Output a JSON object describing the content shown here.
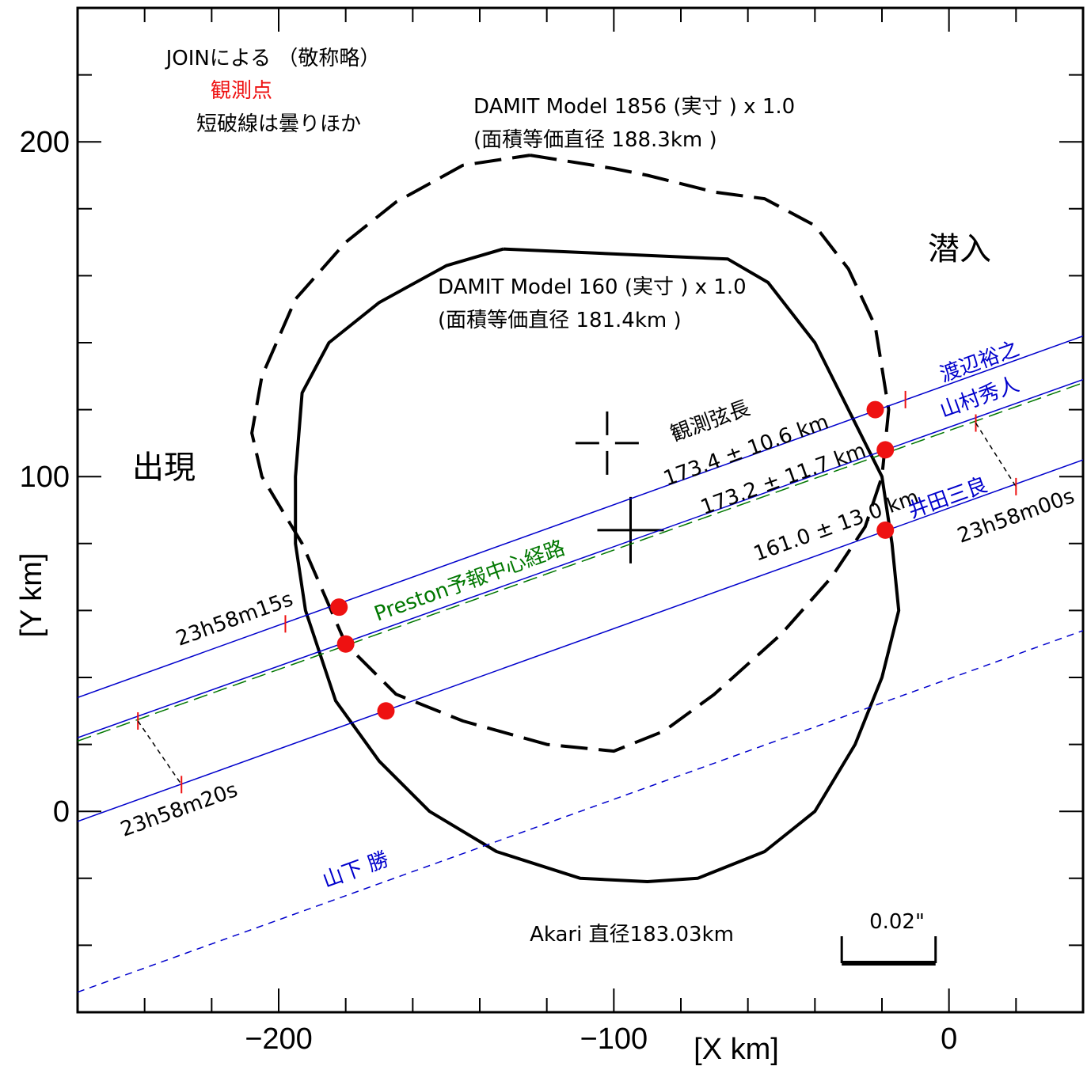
{
  "chart_data": {
    "type": "scatter",
    "xlabel": "[X  km]",
    "ylabel": "[Y  km]",
    "xlim": [
      -260,
      40
    ],
    "ylim": [
      -60,
      240
    ],
    "x_ticks": [
      -200,
      -100,
      0
    ],
    "x_tick_labels": [
      "−200",
      "−100",
      "0"
    ],
    "y_ticks": [
      0,
      100,
      200
    ],
    "y_tick_labels": [
      "0",
      "100",
      "200"
    ],
    "minor_tick_step": 20,
    "grid": false,
    "colors": {
      "observer": "#0000cc",
      "preston": "#007700",
      "event": "#ee1111",
      "tick": "#ee1111",
      "profile": "#000000"
    },
    "observers": [
      {
        "name": "渡辺裕之",
        "line": [
          [
            -260,
            34
          ],
          [
            40,
            142
          ]
        ],
        "disappear": [
          -22,
          120
        ],
        "reappear": null,
        "dashed": false
      },
      {
        "name": "山村秀人",
        "line": [
          [
            -260,
            22
          ],
          [
            40,
            129
          ]
        ],
        "disappear": [
          -19,
          108
        ],
        "reappear": [
          -180,
          50
        ],
        "dashed": false
      },
      {
        "name": "井田三良",
        "line": [
          [
            -260,
            -3
          ],
          [
            40,
            105
          ]
        ],
        "disappear": [
          -19,
          84
        ],
        "reappear": [
          -168,
          30
        ],
        "dashed": false
      },
      {
        "name": "山下 勝",
        "line": [
          [
            -260,
            -54
          ],
          [
            40,
            54
          ]
        ],
        "disappear": null,
        "reappear": null,
        "dashed": true
      }
    ],
    "extra_event": [
      -182,
      61
    ],
    "preston_path": {
      "name": "Preston予報中心経路",
      "line": [
        [
          -260,
          21
        ],
        [
          40,
          128
        ]
      ]
    },
    "time_marks": [
      {
        "label": "23h58m15s",
        "at": [
          -198,
          56
        ]
      },
      {
        "label": "23h58m20s",
        "at": [
          -242,
          27
        ],
        "leader_to": [
          -229,
          8
        ]
      },
      {
        "label": "23h58m00s",
        "at": [
          8,
          116
        ],
        "leader_to": [
          20,
          97
        ]
      }
    ],
    "model_160": {
      "name": "DAMIT Model 160 (実寸 ) x 1.0",
      "subtitle": "(面積等価直径 181.4km )",
      "center": [
        -95,
        84
      ],
      "points": [
        [
          -133,
          168
        ],
        [
          -66,
          165
        ],
        [
          -54,
          158
        ],
        [
          -40,
          140
        ],
        [
          -30,
          120
        ],
        [
          -20,
          100
        ],
        [
          -17,
          80
        ],
        [
          -15,
          60
        ],
        [
          -20,
          40
        ],
        [
          -28,
          20
        ],
        [
          -40,
          0
        ],
        [
          -55,
          -12
        ],
        [
          -75,
          -20
        ],
        [
          -90,
          -21
        ],
        [
          -110,
          -20
        ],
        [
          -135,
          -12
        ],
        [
          -155,
          0
        ],
        [
          -170,
          15
        ],
        [
          -183,
          33
        ],
        [
          -192,
          60
        ],
        [
          -195,
          80
        ],
        [
          -195,
          100
        ],
        [
          -193,
          125
        ],
        [
          -185,
          140
        ],
        [
          -170,
          152
        ],
        [
          -150,
          163
        ],
        [
          -133,
          168
        ]
      ]
    },
    "model_1856": {
      "name": "DAMIT Model 1856 (実寸 ) x 1.0",
      "subtitle": "(面積等価直径 188.3km )",
      "center": [
        -102,
        110
      ],
      "points": [
        [
          -125,
          196
        ],
        [
          -100,
          192
        ],
        [
          -90,
          190
        ],
        [
          -70,
          185
        ],
        [
          -55,
          183
        ],
        [
          -40,
          175
        ],
        [
          -30,
          162
        ],
        [
          -22,
          145
        ],
        [
          -18,
          120
        ],
        [
          -20,
          100
        ],
        [
          -25,
          85
        ],
        [
          -35,
          70
        ],
        [
          -50,
          53
        ],
        [
          -70,
          35
        ],
        [
          -85,
          24
        ],
        [
          -100,
          18
        ],
        [
          -120,
          20
        ],
        [
          -145,
          27
        ],
        [
          -165,
          35
        ],
        [
          -180,
          50
        ],
        [
          -193,
          80
        ],
        [
          -205,
          100
        ],
        [
          -208,
          113
        ],
        [
          -205,
          130
        ],
        [
          -195,
          153
        ],
        [
          -180,
          170
        ],
        [
          -165,
          182
        ],
        [
          -145,
          193
        ],
        [
          -125,
          196
        ]
      ]
    },
    "chord_title": "観測弦長",
    "chords": [
      "173.4  ±  10.6 km",
      "173.2  ±  11.7 km",
      "161.0  ±  13.0 km"
    ],
    "source_line": "JOINによる （敬称略）",
    "legend_observation": "観測点",
    "legend_cloud": "短破線は曇りほか",
    "label_disappear": "潜入",
    "label_reappear": "出現",
    "akari": "Akari 直径183.03km",
    "scale_bar": {
      "label": "0.02\"",
      "length_km": 28
    }
  }
}
